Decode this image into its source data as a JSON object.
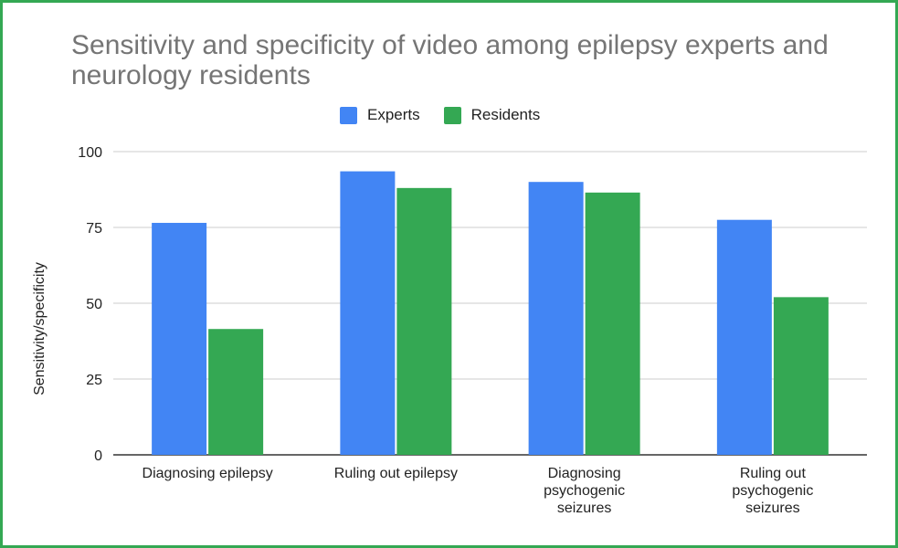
{
  "chart_data": {
    "type": "bar",
    "title": "Sensitivity and specificity of video among epilepsy experts and neurology residents",
    "xlabel": "",
    "ylabel": "Sensitivity/specificity",
    "ylim": [
      0,
      100
    ],
    "yticks": [
      0,
      25,
      50,
      75,
      100
    ],
    "grid": true,
    "legend_position": "top",
    "categories": [
      [
        "Diagnosing epilepsy"
      ],
      [
        "Ruling out epilepsy"
      ],
      [
        "Diagnosing",
        "psychogenic",
        "seizures"
      ],
      [
        "Ruling out",
        "psychogenic",
        "seizures"
      ]
    ],
    "series": [
      {
        "name": "Experts",
        "color": "#4285f4",
        "values": [
          76.5,
          93.5,
          90,
          77.5
        ]
      },
      {
        "name": "Residents",
        "color": "#34a853",
        "values": [
          41.5,
          88,
          86.5,
          52
        ]
      }
    ]
  },
  "colors": {
    "frame_border": "#34a853",
    "title_text": "#757575",
    "gridline": "#cccccc",
    "baseline": "#333333"
  }
}
